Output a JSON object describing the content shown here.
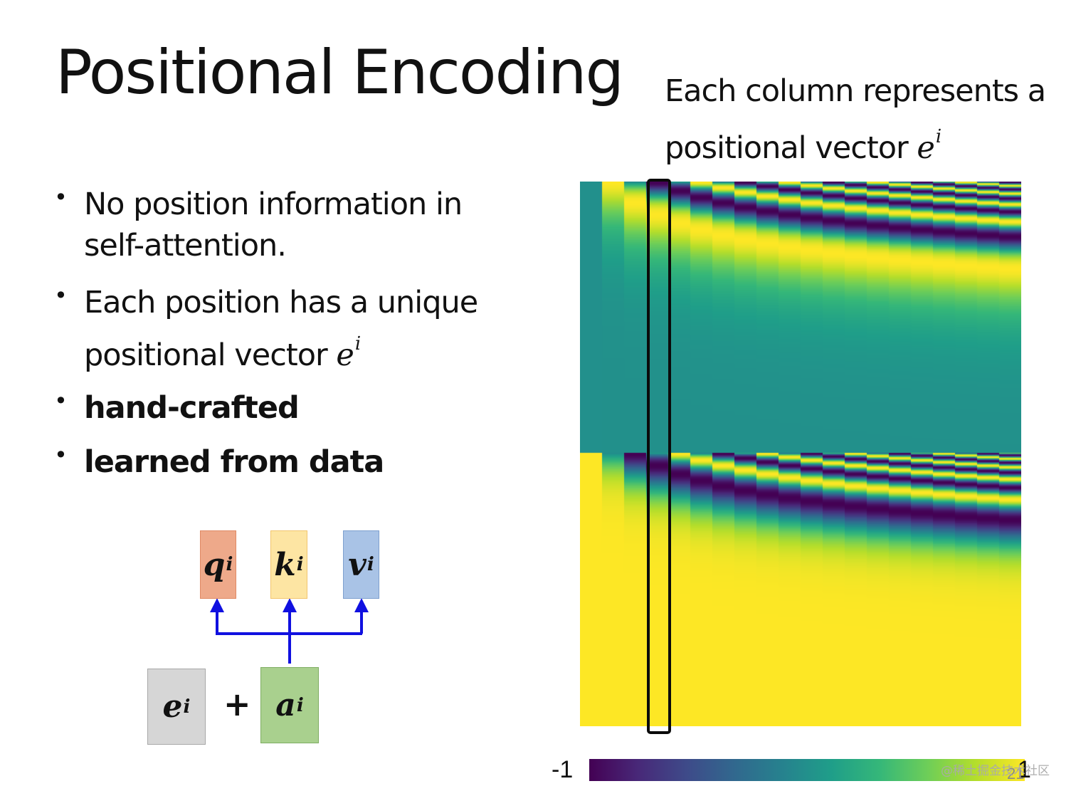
{
  "slide": {
    "title": "Positional Encoding",
    "caption": {
      "line1": "Each column represents a",
      "line2": "positional vector ",
      "var": "e",
      "sup": "i"
    },
    "bullets": [
      {
        "text": "No position information in self-attention."
      },
      {
        "text": "Each position has a unique positional vector ",
        "var": "e",
        "sup": "i"
      },
      {
        "text": "hand-crafted"
      },
      {
        "text": "learned from data"
      }
    ],
    "bullet_glyph": "•",
    "page_number": "21",
    "watermark": "@稀土掘金技术社区"
  },
  "diagram": {
    "outputs": [
      {
        "var": "q",
        "sup": "i",
        "color": "#eea98a"
      },
      {
        "var": "k",
        "sup": "i",
        "color": "#fde5a3"
      },
      {
        "var": "v",
        "sup": "i",
        "color": "#a9c3e6"
      }
    ],
    "inputs": [
      {
        "var": "e",
        "sup": "i",
        "color": "#d6d6d6"
      },
      {
        "var": "a",
        "sup": "i",
        "color": "#a9d08e"
      }
    ],
    "operator": "+",
    "arrow_color": "#1010e0"
  },
  "colorbar": {
    "min_label": "-1",
    "max_label": "1",
    "colormap": "viridis"
  }
}
